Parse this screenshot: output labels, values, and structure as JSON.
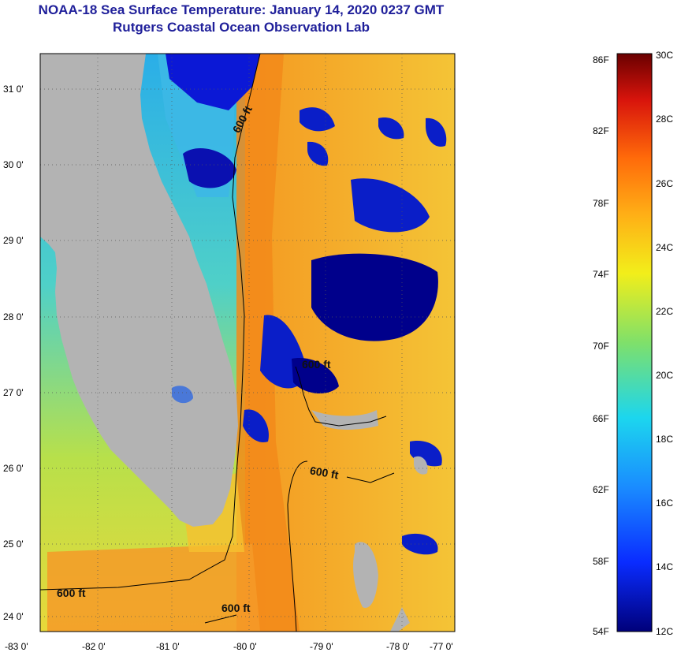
{
  "header": {
    "title_line1": "NOAA-18 Sea Surface Temperature:  January 14, 2020 0237 GMT",
    "title_line2": "Rutgers Coastal Ocean Observation Lab"
  },
  "map": {
    "lat_labels": [
      "31 0'",
      "30 0'",
      "29 0'",
      "28 0'",
      "27 0'",
      "26 0'",
      "25 0'",
      "24 0'"
    ],
    "lon_labels": [
      "-83 0'",
      "-82 0'",
      "-81 0'",
      "-80 0'",
      "-79 0'",
      "-78 0'",
      "-77 0'"
    ],
    "contour_labels": [
      "600 ft",
      "600 ft",
      "600 ft",
      "600 ft",
      "600 ft"
    ],
    "colors": {
      "land": "#b3b3b3",
      "cloud": "#00008b",
      "warm": "#f08a1e",
      "cool": "#2fc8e6"
    }
  },
  "colorbar": {
    "fahrenheit": [
      "86F",
      "82F",
      "78F",
      "74F",
      "70F",
      "66F",
      "62F",
      "58F",
      "54F"
    ],
    "celsius": [
      "30C",
      "28C",
      "26C",
      "24C",
      "22C",
      "20C",
      "18C",
      "16C",
      "14C",
      "12C"
    ]
  }
}
